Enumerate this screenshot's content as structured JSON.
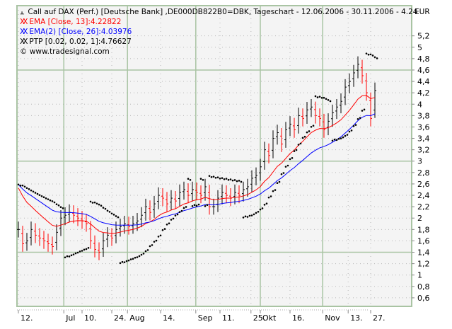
{
  "chart_data": {
    "type": "ohlc",
    "title": "Call auf DAX (Perf.) [Deutsche Bank] ,DE000DB822B0=DBK, Tageschart - 12.06.2006 - 30.11.2006 - 4.24",
    "currency_label": "EUR",
    "copyright": "© www.tradesignal.com",
    "legend": [
      {
        "label": "EMA [Close, 13]:4.22822",
        "color": "#ff0000"
      },
      {
        "label": "EMA(2) [Close, 26]:4.03976",
        "color": "#0000ff"
      },
      {
        "label": "PTP [0.02, 0.02, 1]:4.76627",
        "color": "#000000"
      }
    ],
    "ylim": [
      0.45,
      5.73
    ],
    "yticks": [
      "5,2",
      "5",
      "4,8",
      "4,6",
      "4,4",
      "4,2",
      "4",
      "3,8",
      "3,6",
      "3,4",
      "3,2",
      "3",
      "2,8",
      "2,6",
      "2,4",
      "2,2",
      "2",
      "1,8",
      "1,6",
      "1,4",
      "1,2",
      "1",
      "0,8",
      "0,6"
    ],
    "ytick_values": [
      5.2,
      5.0,
      4.8,
      4.6,
      4.4,
      4.2,
      4.0,
      3.8,
      3.6,
      3.4,
      3.2,
      3.0,
      2.8,
      2.6,
      2.4,
      2.2,
      2.0,
      1.8,
      1.6,
      1.4,
      1.2,
      1.0,
      0.8,
      0.6
    ],
    "y_major_lines": [
      1.4,
      3.0,
      4.6
    ],
    "xticks": [
      {
        "label": "12.",
        "bar": 0,
        "major": false
      },
      {
        "label": "Jul",
        "bar": 10.7,
        "major": true
      },
      {
        "label": "10.",
        "bar": 15,
        "major": false
      },
      {
        "label": "24.",
        "bar": 22,
        "major": false
      },
      {
        "label": "Aug",
        "bar": 25.7,
        "major": true
      },
      {
        "label": "14.",
        "bar": 33.5,
        "major": false
      },
      {
        "label": "Sep",
        "bar": 41.8,
        "major": true
      },
      {
        "label": "11.",
        "bar": 47.5,
        "major": false
      },
      {
        "label": "25.",
        "bar": 54.8,
        "major": false
      },
      {
        "label": "Okt",
        "bar": 57,
        "major": true
      },
      {
        "label": "16.",
        "bar": 64,
        "major": false
      },
      {
        "label": "Nov",
        "bar": 71.7,
        "major": true
      },
      {
        "label": "13.",
        "bar": 77.7,
        "major": false
      },
      {
        "label": "27.",
        "bar": 83,
        "major": false
      }
    ],
    "bar_half_range": 0.14,
    "close": [
      1.8,
      1.55,
      1.6,
      1.8,
      1.7,
      1.65,
      1.6,
      1.55,
      1.5,
      1.75,
      2.0,
      2.05,
      2.1,
      2.05,
      2.0,
      1.95,
      1.9,
      1.6,
      1.45,
      1.4,
      1.6,
      1.7,
      1.65,
      1.8,
      1.85,
      1.9,
      1.85,
      1.9,
      1.95,
      2.05,
      2.2,
      2.1,
      2.25,
      2.4,
      2.35,
      2.25,
      2.35,
      2.3,
      2.45,
      2.5,
      2.4,
      2.5,
      2.45,
      2.4,
      2.55,
      2.2,
      2.2,
      2.35,
      2.45,
      2.4,
      2.35,
      2.45,
      2.4,
      2.5,
      2.55,
      2.7,
      2.75,
      2.9,
      3.2,
      3.1,
      3.4,
      3.5,
      3.3,
      3.55,
      3.65,
      3.55,
      3.8,
      3.75,
      3.9,
      3.95,
      3.8,
      3.75,
      3.55,
      3.7,
      3.85,
      3.95,
      4.05,
      4.3,
      4.4,
      4.55,
      4.7,
      4.5,
      4.2,
      3.75,
      4.24
    ],
    "ema_start": 2.65,
    "ema2_start": 2.65,
    "colors": {
      "up": "#000000",
      "down": "#ff0000",
      "ema": "#ff0000",
      "ema2": "#0000ff",
      "sar": "#000000",
      "plot_bg": "#f4f4f4",
      "frame": "#a9c4a3"
    }
  }
}
